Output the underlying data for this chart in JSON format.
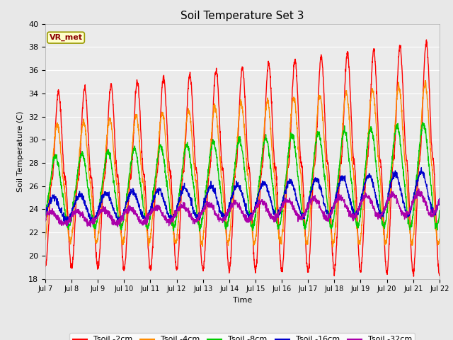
{
  "title": "Soil Temperature Set 3",
  "xlabel": "Time",
  "ylabel": "Soil Temperature (C)",
  "ylim": [
    18,
    40
  ],
  "yticks": [
    18,
    20,
    22,
    24,
    26,
    28,
    30,
    32,
    34,
    36,
    38,
    40
  ],
  "x_tick_labels": [
    "Jul 7",
    "Jul 8",
    "Jul 9",
    "Jul 10",
    "Jul 11",
    "Jul 12",
    "Jul 13",
    "Jul 14",
    "Jul 15",
    "Jul 16",
    "Jul 17",
    "Jul 18",
    "Jul 19",
    "Jul 20",
    "Jul 21",
    "Jul 22"
  ],
  "colors": {
    "Tsoil -2cm": "#ff0000",
    "Tsoil -4cm": "#ff8c00",
    "Tsoil -8cm": "#00cc00",
    "Tsoil -16cm": "#0000cc",
    "Tsoil -32cm": "#aa00aa"
  },
  "annotation_text": "VR_met",
  "annotation_color": "#8b0000",
  "annotation_bg": "#ffffcc",
  "annotation_border": "#999900",
  "background_color": "#e8e8e8",
  "plot_bg": "#ebebeb",
  "grid_color": "#ffffff",
  "linewidth": 1.0,
  "n_days": 15,
  "ppd": 144
}
